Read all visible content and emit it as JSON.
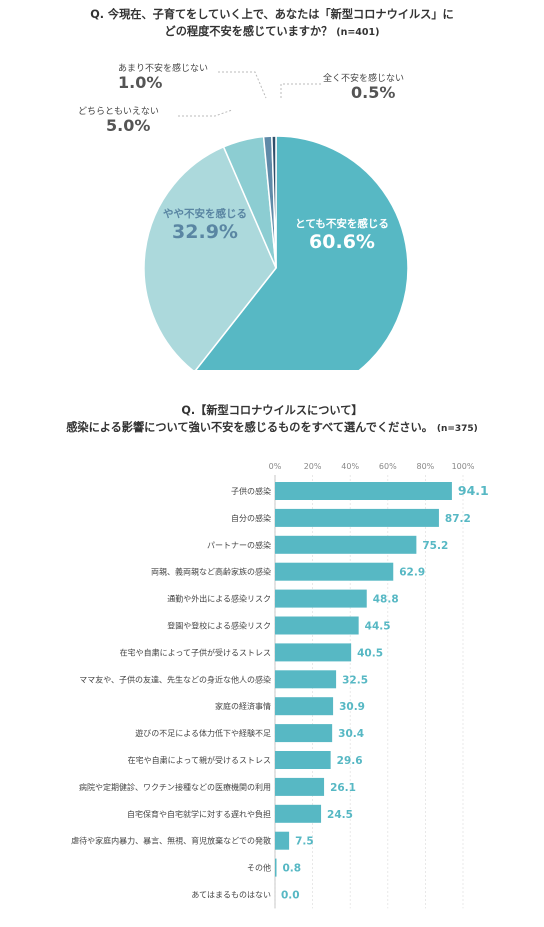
{
  "q1": {
    "title_line1": "Q. 今現在、子育てをしていく上で、あなたは「新型コロナウイルス」に",
    "title_line2": "どの程度不安を感じていますか？",
    "n": "(n=401)"
  },
  "q2": {
    "title_line1": "Q.【新型コロナウイルスについて】",
    "title_line2": "感染による影響について強い不安を感じるものをすべて選んでください。",
    "n": "(n=375)"
  },
  "chart_data": [
    {
      "type": "pie",
      "title": "Q. 今現在、子育てをしていく上で、あなたは「新型コロナウイルス」にどの程度不安を感じていますか？ (n=401)",
      "slices": [
        {
          "label": "とても不安を感じる",
          "value": 60.6,
          "display": "60.6%",
          "color": "#57b8c4"
        },
        {
          "label": "やや不安を感じる",
          "value": 32.9,
          "display": "32.9%",
          "color": "#acd9dc"
        },
        {
          "label": "どちらともいえない",
          "value": 5.0,
          "display": "5.0%",
          "color": "#8ccdd2"
        },
        {
          "label": "あまり不安を感じない",
          "value": 1.0,
          "display": "1.0%",
          "color": "#5f8aa8"
        },
        {
          "label": "全く不安を感じない",
          "value": 0.5,
          "display": "0.5%",
          "color": "#2f4f6b"
        }
      ]
    },
    {
      "type": "bar",
      "orientation": "horizontal",
      "title": "Q.【新型コロナウイルスについて】感染による影響について強い不安を感じるものをすべて選んでください。(n=375)",
      "xlim": [
        0,
        100
      ],
      "ticks": [
        "0%",
        "20%",
        "40%",
        "60%",
        "80%",
        "100%"
      ],
      "color": "#57b8c4",
      "categories": [
        "子供の感染",
        "自分の感染",
        "パートナーの感染",
        "両親、義両親など高齢家族の感染",
        "通勤や外出による感染リスク",
        "登園や登校による感染リスク",
        "在宅や自粛によって子供が受けるストレス",
        "ママ友や、子供の友達、先生などの身近な他人の感染",
        "家庭の経済事情",
        "遊びの不足による体力低下や経験不足",
        "在宅や自粛によって親が受けるストレス",
        "病院や定期健診、ワクチン接種などの医療機関の利用",
        "自宅保育や自宅就学に対する遅れや負担",
        "虐待や家庭内暴力、暴言、無視、育児放棄などでの発散",
        "その他",
        "あてはまるものはない"
      ],
      "values": [
        94.1,
        87.2,
        75.2,
        62.9,
        48.8,
        44.5,
        40.5,
        32.5,
        30.9,
        30.4,
        29.6,
        26.1,
        24.5,
        7.5,
        0.8,
        0.0
      ],
      "labels": [
        "94.1",
        "87.2",
        "75.2",
        "62.9",
        "48.8",
        "44.5",
        "40.5",
        "32.5",
        "30.9",
        "30.4",
        "29.6",
        "26.1",
        "24.5",
        "7.5",
        "0.8",
        "0.0"
      ]
    }
  ]
}
